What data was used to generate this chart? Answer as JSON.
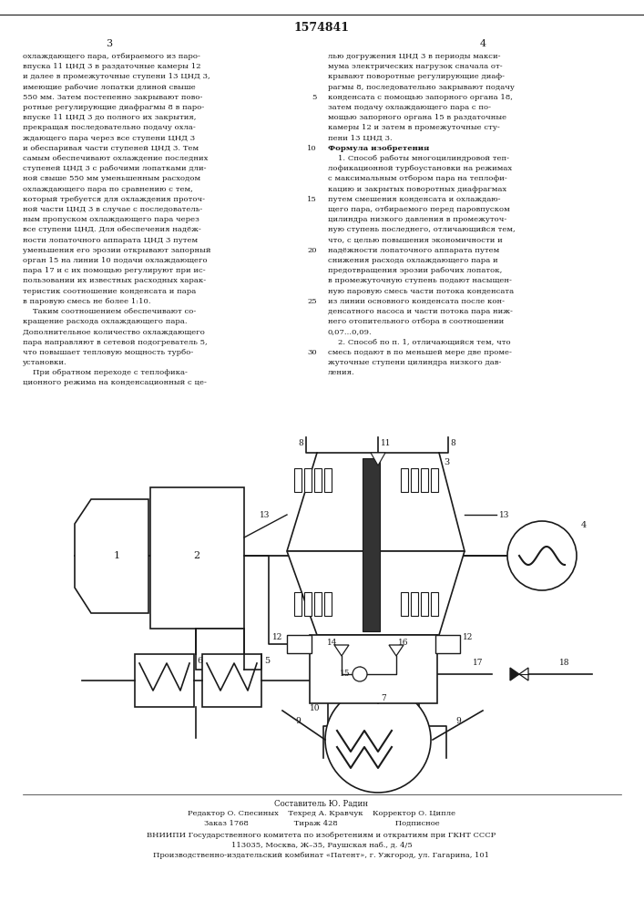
{
  "title": "1574841",
  "page_numbers": [
    "3",
    "4"
  ],
  "bg_color": "#ffffff",
  "text_color": "#1a1a1a",
  "left_column_text": [
    "охлаждающего пара, отбираемого из паро-",
    "впуска 11 ЦНД 3 в раздаточные камеры 12",
    "и далее в промежуточные ступени 13 ЦНД 3,",
    "имеющие рабочие лопатки длиной свыше",
    "550 мм. Затем постепенно закрывают пово-",
    "ротные регулирующие диафрагмы 8 в паро-",
    "впуске 11 ЦНД 3 до полного их закрытия,",
    "прекращая последовательно подачу охла-",
    "ждающего пара через все ступени ЦНД 3",
    "и обеспаривая части ступеней ЦНД 3. Тем",
    "самым обеспечивают охлаждение последних",
    "ступеней ЦНД 3 с рабочими лопатками дли-",
    "ной свыше 550 мм уменьшенным расходом",
    "охлаждающего пара по сравнению с тем,",
    "который требуется для охлаждения проточ-",
    "ной части ЦНД 3 в случае с последователь-",
    "ным пропуском охлаждающего пара через",
    "все ступени ЦНД. Для обеспечения надёж-",
    "ности лопаточного аппарата ЦНД 3 путем",
    "уменьшения его эрозии открывают запорный",
    "орган 15 на линии 10 подачи охлаждающего",
    "пара 17 и с их помощью регулируют при ис-",
    "пользовании их известных расходных харак-",
    "теристик соотношение конденсата и пара",
    "в паровую смесь не более 1:10.",
    "    Таким соотношением обеспечивают со-",
    "кращение расхода охлаждающего пара.",
    "Дополнительное количество охлаждающего",
    "пара направляют в сетевой подогреватель 5,",
    "что повышает тепловую мощность турбо-",
    "установки.",
    "    При обратном переходе с теплофика-",
    "ционного режима на конденсационный с це-"
  ],
  "right_column_text": [
    "лью догружения ЦНД 3 в периоды макси-",
    "мума электрических нагрузок сначала от-",
    "крывают поворотные регулирующие диаф-",
    "рагмы 8, последовательно закрывают подачу",
    "конденсата с помощью запорного органа 18,",
    "затем подачу охлаждающего пара с по-",
    "мощью запорного органа 15 в раздаточные",
    "камеры 12 и затем в промежуточные сту-",
    "пени 13 ЦНД 3.",
    "Формула изобретения",
    "    1. Способ работы многоцилиндровой теп-",
    "лофикационной турбоустановки на режимах",
    "с максимальным отбором пара на теплофи-",
    "кацию и закрытых поворотных диафрагмах",
    "путем смешения конденсата и охлаждаю-",
    "щего пара, отбираемого перед паровпуском",
    "цилиндра низкого давления в промежуточ-",
    "ную ступень последнего, отличающийся тем,",
    "что, с целью повышения экономичности и",
    "надёжности лопаточного аппарата путем",
    "снижения расхода охлаждающего пара и",
    "предотвращения эрозии рабочих лопаток,",
    "в промежуточную ступень подают насыщен-",
    "ную паровую смесь части потока конденсата",
    "из линии основного конденсата после кон-",
    "денсатного насоса и части потока пара ниж-",
    "него отопительного отбора в соотношении",
    "0,07...0,09.",
    "    2. Способ по п. 1, отличающийся тем, что",
    "смесь подают в по меньшей мере две проме-",
    "жуточные ступени цилиндра низкого дав-",
    "ления."
  ],
  "line_numbers": [
    5,
    10,
    15,
    20,
    25,
    30
  ],
  "footer_text": [
    "Составитель Ю. Радин",
    "Редактор О. Спесиных    Техред А. Кравчук    Корректор О. Ципле",
    "Заказ 1768                   Тираж 428                        Подписное",
    "ВНИИПИ Государственного комитета по изобретениям и открытиям при ГКНТ СССР",
    "113035, Москва, Ж–35, Раушская наб., д. 4/5",
    "Производственно-издательский комбинат «Патент», г. Ужгород, ул. Гагарина, 101"
  ]
}
